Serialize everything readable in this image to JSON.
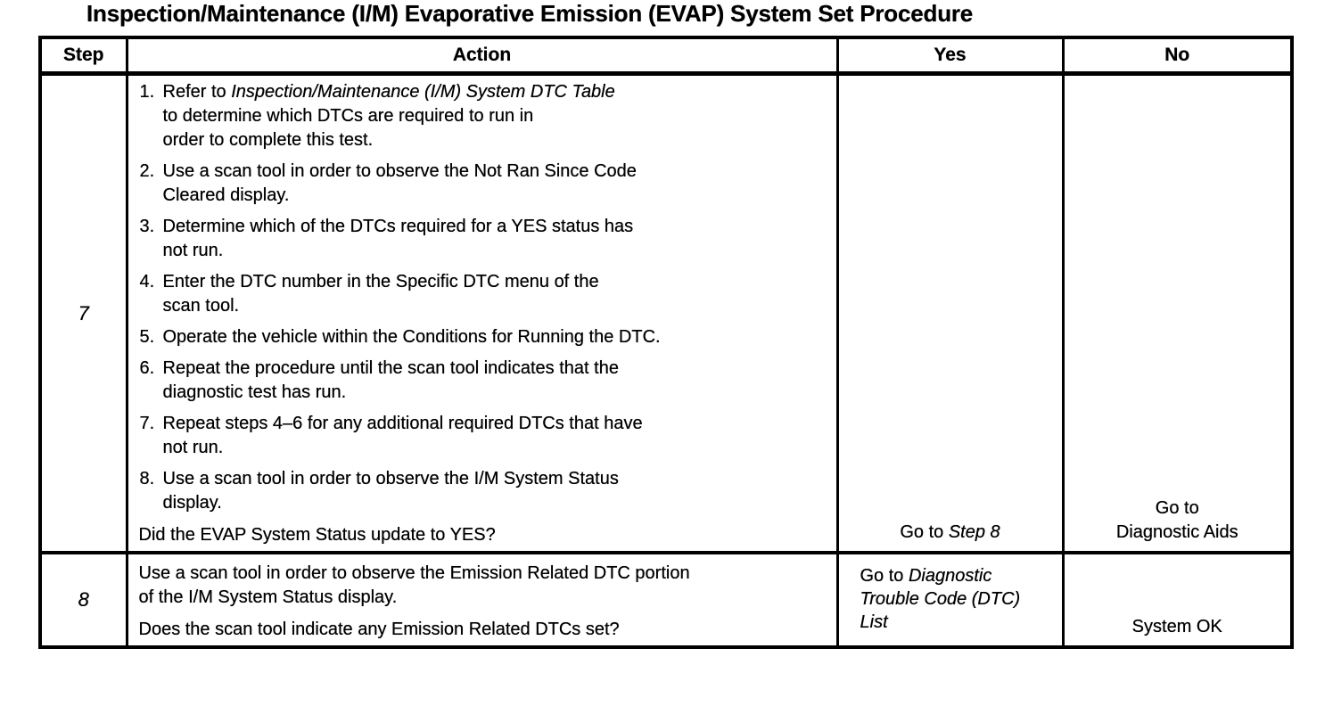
{
  "title": "Inspection/Maintenance (I/M) Evaporative Emission (EVAP) System Set Procedure",
  "colors": {
    "ink": "#000000",
    "paper": "#ffffff"
  },
  "table": {
    "headers": {
      "step": "Step",
      "action": "Action",
      "yes": "Yes",
      "no": "No"
    },
    "rows": [
      {
        "step": "7",
        "action": {
          "list": [
            {
              "num": "1.",
              "pre": "Refer to ",
              "italic": "Inspection/Maintenance (I/M) System DTC Table",
              "post": "\nto determine which DTCs are required to run in\norder to complete this test."
            },
            {
              "num": "2.",
              "text": "Use a scan tool in order to observe the Not Ran Since Code\nCleared display."
            },
            {
              "num": "3.",
              "text": "Determine which of the DTCs required for a YES status has\nnot run."
            },
            {
              "num": "4.",
              "text": "Enter the DTC number in the Specific DTC menu of the\nscan tool."
            },
            {
              "num": "5.",
              "text": "Operate the vehicle within the Conditions for Running the DTC."
            },
            {
              "num": "6.",
              "text": "Repeat the procedure until the scan tool indicates that the\ndiagnostic test has run."
            },
            {
              "num": "7.",
              "text": "Repeat steps 4–6 for any additional required DTCs that have\nnot run."
            },
            {
              "num": "8.",
              "text": "Use a scan tool in order to observe the I/M System Status\ndisplay."
            }
          ],
          "question": "Did the EVAP System Status update to YES?"
        },
        "yes": {
          "pre": "Go to ",
          "italic": "Step 8"
        },
        "no": "Go to\nDiagnostic Aids"
      },
      {
        "step": "8",
        "action": {
          "paragraphs": [
            "Use a scan tool in order to observe the Emission Related DTC portion\nof the I/M System Status display.",
            "Does the scan tool indicate any Emission Related DTCs set?"
          ]
        },
        "yes": {
          "pre": "Go to ",
          "italic": "Diagnostic\nTrouble Code (DTC)\nList"
        },
        "no": "System OK"
      }
    ]
  }
}
